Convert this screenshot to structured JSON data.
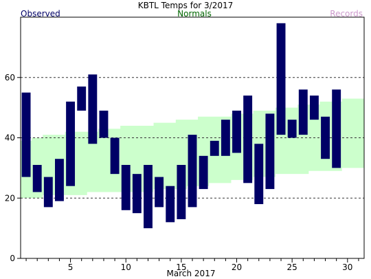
{
  "chart_data": {
    "type": "bar",
    "title": "KBTL Temps for  3/2017",
    "xlabel": "March 2017",
    "ylabel": "",
    "xlim": [
      0.5,
      31.5
    ],
    "ylim": [
      0,
      80
    ],
    "grid": true,
    "legend": [
      {
        "label": "Observed",
        "color": "#000066"
      },
      {
        "label": "Normals",
        "color": "#006600"
      },
      {
        "label": "Records",
        "color": "#cc99cc"
      }
    ],
    "x_ticks": [
      5,
      10,
      15,
      20,
      25,
      30
    ],
    "y_ticks": [
      0,
      20,
      40,
      60
    ],
    "normals": {
      "days": [
        1,
        2,
        3,
        4,
        5,
        6,
        7,
        8,
        9,
        10,
        11,
        12,
        13,
        14,
        15,
        16,
        17,
        18,
        19,
        20,
        21,
        22,
        23,
        24,
        25,
        26,
        27,
        28,
        29,
        30,
        31
      ],
      "low": [
        20,
        20,
        21,
        21,
        21,
        21,
        22,
        22,
        22,
        22,
        22,
        22,
        23,
        23,
        23,
        24,
        24,
        25,
        25,
        26,
        26,
        27,
        27,
        28,
        28,
        28,
        29,
        29,
        29,
        30,
        30
      ],
      "high": [
        39,
        40,
        41,
        41,
        42,
        42,
        42,
        43,
        43,
        44,
        44,
        44,
        45,
        45,
        46,
        46,
        47,
        47,
        47,
        48,
        48,
        49,
        49,
        50,
        50,
        51,
        51,
        52,
        52,
        53,
        53
      ]
    },
    "observed": {
      "days": [
        1,
        2,
        3,
        4,
        5,
        6,
        7,
        8,
        9,
        10,
        11,
        12,
        13,
        14,
        15,
        16,
        17,
        18,
        19,
        20,
        21,
        22,
        23,
        24,
        25,
        26,
        27,
        28,
        29
      ],
      "high": [
        55,
        31,
        27,
        33,
        52,
        57,
        61,
        49,
        40,
        31,
        28,
        31,
        27,
        24,
        31,
        41,
        34,
        39,
        46,
        49,
        54,
        38,
        48,
        78,
        46,
        56,
        54,
        47,
        56
      ],
      "low": [
        27,
        22,
        17,
        19,
        24,
        49,
        38,
        40,
        28,
        16,
        15,
        10,
        17,
        12,
        13,
        17,
        23,
        34,
        34,
        35,
        25,
        18,
        23,
        41,
        40,
        41,
        46,
        33,
        30
      ]
    },
    "colors": {
      "observed": "#000066",
      "normals": "#ccffcc",
      "grid": "#333333",
      "axis": "#000000"
    }
  }
}
